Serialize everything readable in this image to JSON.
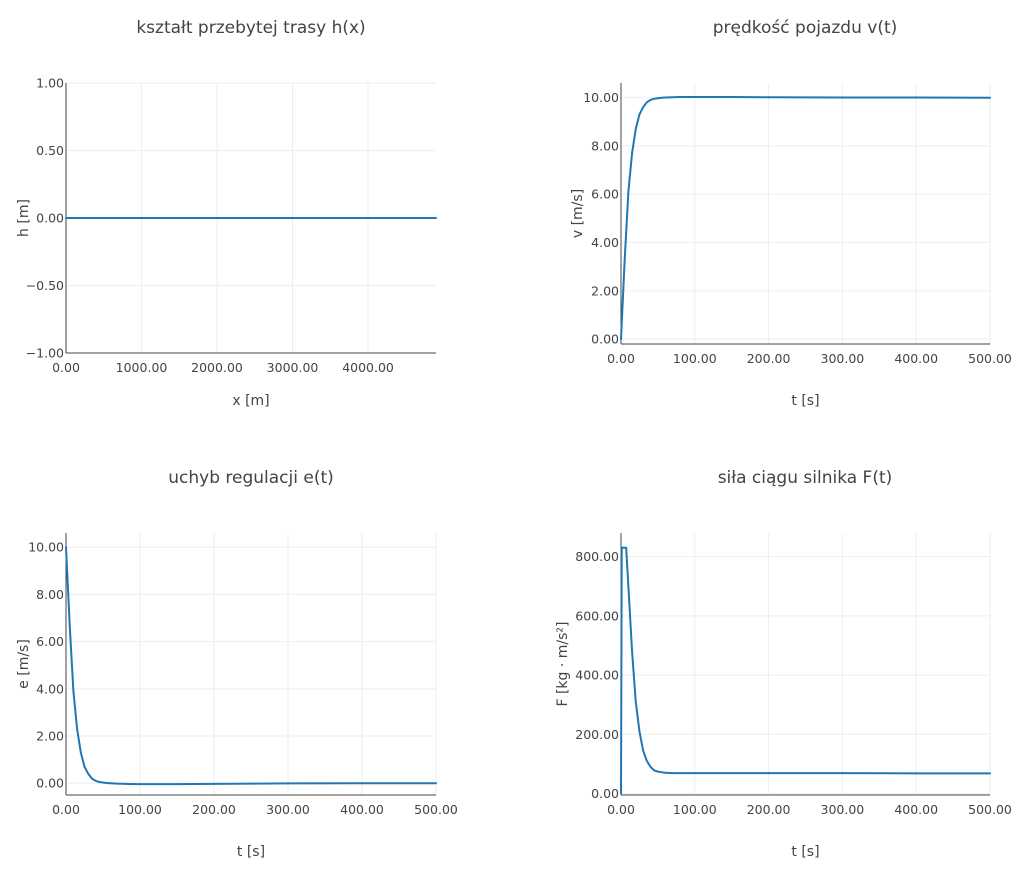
{
  "colors": {
    "series": "#1f77b4",
    "grid": "#eeeeee",
    "axis": "#444444",
    "text": "#444444"
  },
  "chart_data": [
    {
      "type": "line",
      "title": "kształt przebytej trasy h(x)",
      "xlabel": "x [m]",
      "ylabel": "h [m]",
      "xlim": [
        0,
        4900
      ],
      "ylim": [
        -1,
        1
      ],
      "xticks": [
        0,
        1000,
        2000,
        3000,
        4000
      ],
      "xtick_labels": [
        "0.00",
        "1000.00",
        "2000.00",
        "3000.00",
        "4000.00"
      ],
      "yticks": [
        -1,
        -0.5,
        0,
        0.5,
        1
      ],
      "ytick_labels": [
        "−1.00",
        "−0.50",
        "0.00",
        "0.50",
        "1.00"
      ],
      "x": [
        0,
        4900
      ],
      "y": [
        0,
        0
      ],
      "grid": true
    },
    {
      "type": "line",
      "title": "prędkość pojazdu v(t)",
      "xlabel": "t [s]",
      "ylabel": "v [m/s]",
      "xlim": [
        0,
        500
      ],
      "ylim": [
        -0.2,
        10.6
      ],
      "xticks": [
        0,
        100,
        200,
        300,
        400,
        500
      ],
      "xtick_labels": [
        "0.00",
        "100.00",
        "200.00",
        "300.00",
        "400.00",
        "500.00"
      ],
      "yticks": [
        0,
        2,
        4,
        6,
        8,
        10
      ],
      "ytick_labels": [
        "0.00",
        "2.00",
        "4.00",
        "6.00",
        "8.00",
        "10.00"
      ],
      "x": [
        0,
        5,
        10,
        15,
        20,
        25,
        30,
        35,
        40,
        45,
        50,
        55,
        60,
        70,
        80,
        100,
        150,
        200,
        300,
        400,
        500
      ],
      "y": [
        0,
        3.3,
        6.1,
        7.7,
        8.7,
        9.3,
        9.6,
        9.8,
        9.9,
        9.95,
        9.97,
        9.99,
        10.0,
        10.01,
        10.02,
        10.02,
        10.02,
        10.01,
        10.0,
        10.0,
        9.99
      ],
      "grid": true
    },
    {
      "type": "line",
      "title": "uchyb regulacji e(t)",
      "xlabel": "t [s]",
      "ylabel": "e [m/s]",
      "xlim": [
        0,
        500
      ],
      "ylim": [
        -0.5,
        10.6
      ],
      "xticks": [
        0,
        100,
        200,
        300,
        400,
        500
      ],
      "xtick_labels": [
        "0.00",
        "100.00",
        "200.00",
        "300.00",
        "400.00",
        "500.00"
      ],
      "yticks": [
        0,
        2,
        4,
        6,
        8,
        10
      ],
      "ytick_labels": [
        "0.00",
        "2.00",
        "4.00",
        "6.00",
        "8.00",
        "10.00"
      ],
      "x": [
        0,
        5,
        10,
        15,
        20,
        25,
        30,
        35,
        40,
        45,
        50,
        55,
        60,
        70,
        80,
        100,
        150,
        200,
        300,
        400,
        500
      ],
      "y": [
        10.0,
        6.7,
        3.9,
        2.3,
        1.3,
        0.7,
        0.4,
        0.2,
        0.1,
        0.05,
        0.03,
        0.01,
        0.0,
        -0.02,
        -0.03,
        -0.04,
        -0.04,
        -0.03,
        -0.01,
        0.0,
        0.0
      ],
      "grid": true
    },
    {
      "type": "line",
      "title": "siła ciągu silnika F(t)",
      "xlabel": "t [s]",
      "ylabel": "F [kg · m/s²]",
      "xlim": [
        0,
        500
      ],
      "ylim": [
        -5,
        880
      ],
      "xticks": [
        0,
        100,
        200,
        300,
        400,
        500
      ],
      "xtick_labels": [
        "0.00",
        "100.00",
        "200.00",
        "300.00",
        "400.00",
        "500.00"
      ],
      "yticks": [
        0,
        200,
        400,
        600,
        800
      ],
      "ytick_labels": [
        "0.00",
        "200.00",
        "400.00",
        "600.00",
        "800.00"
      ],
      "x": [
        0,
        1,
        2,
        5,
        7,
        10,
        15,
        20,
        25,
        30,
        35,
        40,
        45,
        50,
        60,
        70,
        80,
        100,
        200,
        300,
        400,
        500
      ],
      "y": [
        0,
        830,
        830,
        830,
        830,
        700,
        480,
        310,
        210,
        145,
        110,
        90,
        78,
        74,
        70,
        69,
        69,
        69,
        69,
        69,
        68,
        68
      ],
      "grid": true
    }
  ]
}
